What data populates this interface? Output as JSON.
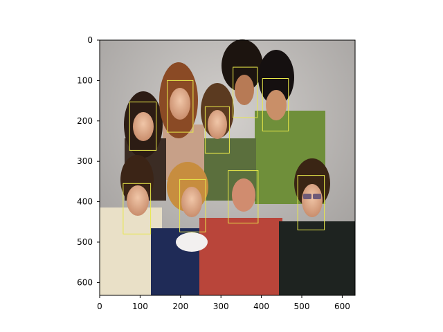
{
  "figure": {
    "x_ticks": [
      "0",
      "100",
      "200",
      "300",
      "400",
      "500",
      "600"
    ],
    "y_ticks": [
      "0",
      "100",
      "200",
      "300",
      "400",
      "500",
      "600"
    ],
    "box_color": "#e8e84a"
  },
  "image_data": {
    "description_width": 632,
    "description_height": 632,
    "x_range": [
      0,
      632
    ],
    "y_range": [
      632,
      0
    ],
    "faces": [
      {
        "x": 74,
        "y": 153,
        "w": 66,
        "h": 120
      },
      {
        "x": 167,
        "y": 100,
        "w": 64,
        "h": 128
      },
      {
        "x": 261,
        "y": 165,
        "w": 60,
        "h": 115
      },
      {
        "x": 330,
        "y": 67,
        "w": 60,
        "h": 125
      },
      {
        "x": 403,
        "y": 95,
        "w": 64,
        "h": 130
      },
      {
        "x": 58,
        "y": 355,
        "w": 68,
        "h": 125
      },
      {
        "x": 198,
        "y": 345,
        "w": 64,
        "h": 130
      },
      {
        "x": 318,
        "y": 323,
        "w": 74,
        "h": 130
      },
      {
        "x": 490,
        "y": 335,
        "w": 66,
        "h": 135
      }
    ]
  }
}
